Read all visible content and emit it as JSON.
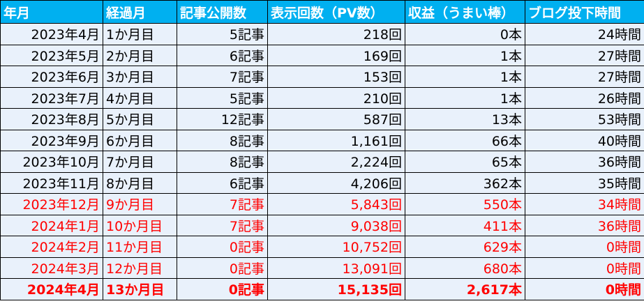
{
  "table": {
    "header": [
      "年月",
      "経過月",
      "記事公開数",
      "表示回数（PV数）",
      "収益（うまい棒）",
      "ブログ投下時間"
    ],
    "rows": [
      [
        "2023年4月",
        "1か月目",
        "5記事",
        "218回",
        "0本",
        "24時間"
      ],
      [
        "2023年5月",
        "2か月目",
        "6記事",
        "169回",
        "1本",
        "27時間"
      ],
      [
        "2023年6月",
        "3か月目",
        "7記事",
        "153回",
        "1本",
        "27時間"
      ],
      [
        "2023年7月",
        "4か月目",
        "5記事",
        "210回",
        "1本",
        "26時間"
      ],
      [
        "2023年8月",
        "5か月目",
        "12記事",
        "587回",
        "13本",
        "53時間"
      ],
      [
        "2023年9月",
        "6か月目",
        "8記事",
        "1,161回",
        "66本",
        "40時間"
      ],
      [
        "2023年10月",
        "7か月目",
        "8記事",
        "2,224回",
        "65本",
        "36時間"
      ],
      [
        "2023年11月",
        "8か月目",
        "6記事",
        "4,206回",
        "362本",
        "35時間"
      ],
      [
        "2023年12月",
        "9か月目",
        "7記事",
        "5,843回",
        "550本",
        "34時間"
      ],
      [
        "2024年1月",
        "10か月目",
        "7記事",
        "9,038回",
        "411本",
        "36時間"
      ],
      [
        "2024年2月",
        "11か月目",
        "0記事",
        "10,752回",
        "629本",
        "0時間"
      ],
      [
        "2024年3月",
        "12か月目",
        "0記事",
        "13,091回",
        "680本",
        "0時間"
      ],
      [
        "2024年4月",
        "13か月目",
        "0記事",
        "15,135回",
        "2,617本",
        "0時間"
      ]
    ]
  }
}
